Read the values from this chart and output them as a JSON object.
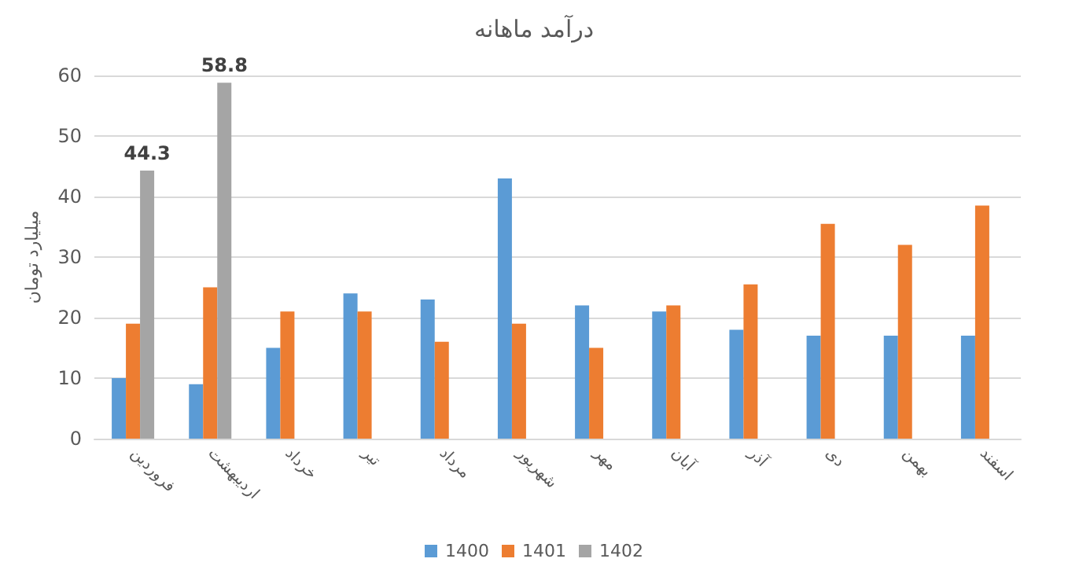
{
  "chart_data": {
    "type": "bar",
    "title": "درآمد ماهانه",
    "ylabel": "میلیارد تومان",
    "categories": [
      "فروردین",
      "اردیبهشت",
      "خرداد",
      "تیر",
      "مرداد",
      "شهریور",
      "مهر",
      "آبان",
      "آذر",
      "دی",
      "بهمن",
      "اسفند"
    ],
    "series": [
      {
        "name": "1400",
        "color": "#5b9bd5",
        "values": [
          10,
          9,
          15,
          24,
          23,
          43,
          22,
          21,
          18,
          17,
          17,
          17
        ]
      },
      {
        "name": "1401",
        "color": "#ed7d31",
        "values": [
          19,
          25,
          21,
          21,
          16,
          19,
          15,
          22,
          25.5,
          35.5,
          32,
          38.5
        ]
      },
      {
        "name": "1402",
        "color": "#a5a5a5",
        "values": [
          44.3,
          58.8,
          null,
          null,
          null,
          null,
          null,
          null,
          null,
          null,
          null,
          null
        ],
        "value_labels": [
          "44.3",
          "58.8",
          null,
          null,
          null,
          null,
          null,
          null,
          null,
          null,
          null,
          null
        ]
      }
    ],
    "ylim": [
      0,
      60
    ],
    "yticks": [
      0,
      10,
      20,
      30,
      40,
      50,
      60
    ],
    "grid": "y",
    "legend": "bottom"
  }
}
